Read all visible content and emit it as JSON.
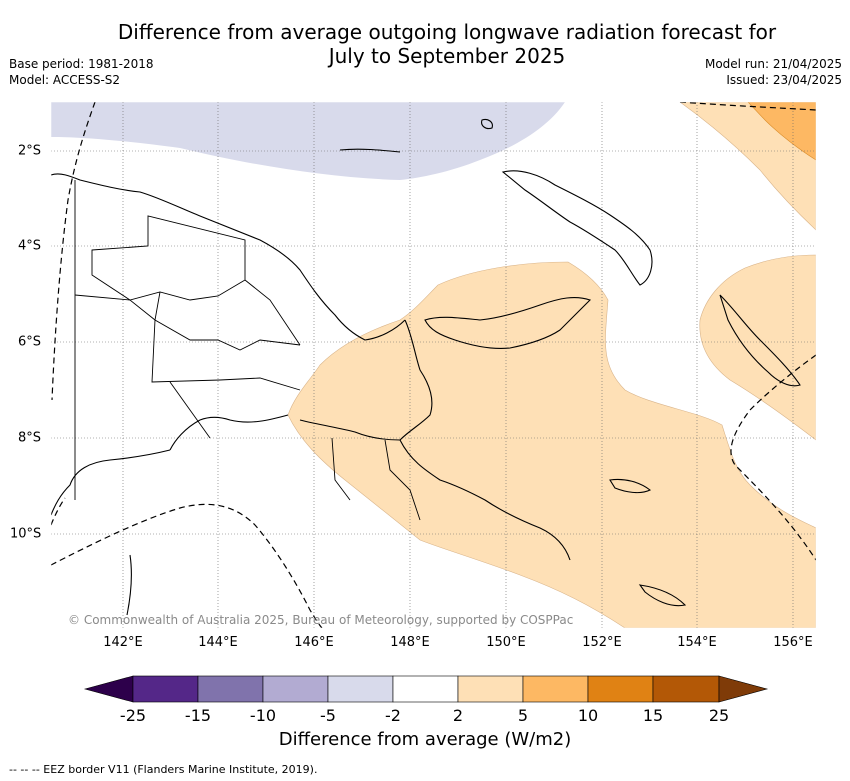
{
  "title_line1": "Difference from average outgoing longwave radiation forecast for",
  "title_line2": "July to September 2025",
  "meta": {
    "base_period": "Base period: 1981-2018",
    "model": "Model: ACCESS-S2",
    "model_run": "Model run: 21/04/2025",
    "issued": "Issued: 23/04/2025"
  },
  "map": {
    "lat_ticks": [
      "2°S",
      "4°S",
      "6°S",
      "8°S",
      "10°S"
    ],
    "lon_ticks": [
      "142°E",
      "144°E",
      "146°E",
      "148°E",
      "150°E",
      "152°E",
      "154°E",
      "156°E"
    ],
    "copyright": "© Commonwealth of Australia 2025, Bureau of Meteorology, supported by COSPPac"
  },
  "colorbar": {
    "labels": [
      "-25",
      "-15",
      "-10",
      "-5",
      "-2",
      "2",
      "5",
      "10",
      "15",
      "25"
    ],
    "colors": [
      "#2d004b",
      "#542788",
      "#8073ac",
      "#b2abd2",
      "#d8daeb",
      "#ffffff",
      "#fee0b6",
      "#fdb863",
      "#e08214",
      "#b35806",
      "#7f3b08"
    ],
    "title": "Difference from average (W/m2)"
  },
  "footnote": "--  --  -- EEZ border V11 (Flanders Marine Institute, 2019)."
}
